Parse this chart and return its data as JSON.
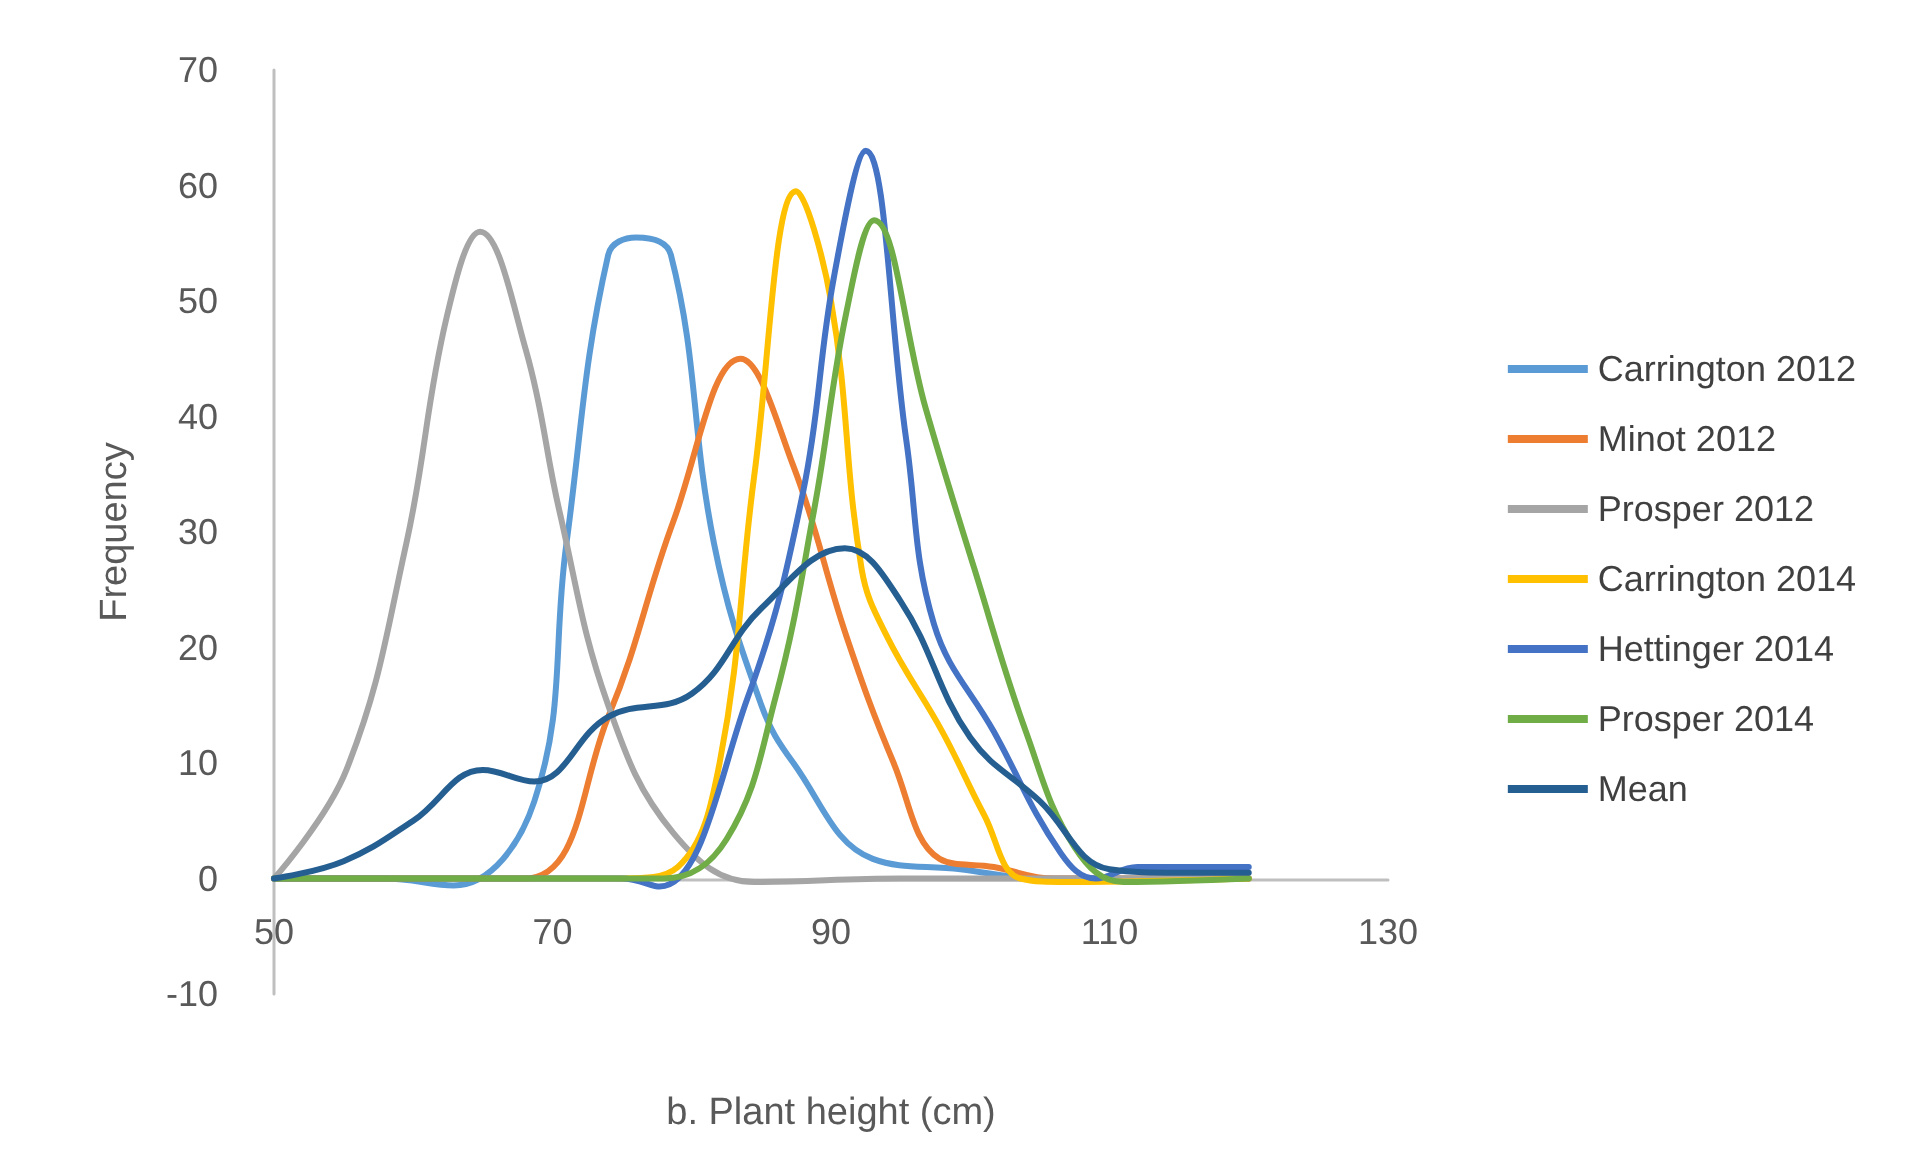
{
  "chart_data": {
    "type": "line",
    "xlabel": "b. Plant height (cm)",
    "ylabel": "Frequency",
    "xlim": [
      50,
      130
    ],
    "xticks": [
      50,
      70,
      90,
      110,
      130
    ],
    "ylim": [
      -10,
      70
    ],
    "yticks": [
      -10,
      0,
      10,
      20,
      30,
      40,
      50,
      60,
      70
    ],
    "grid": false,
    "legend": "right",
    "marker": "none",
    "line_style": "solid",
    "series": [
      {
        "name": "Carrington 2012",
        "color": "#5b9bd5",
        "x": [
          50,
          58,
          62.9,
          68.7,
          71,
          74,
          76,
          78.5,
          81.6,
          85,
          87.3,
          93,
          99.3,
          105,
          120
        ],
        "values": [
          0,
          0,
          -0.6,
          6.7,
          29,
          54,
          55.5,
          54,
          29,
          15,
          10,
          1.7,
          0.8,
          0,
          0
        ]
      },
      {
        "name": "Minot 2012",
        "color": "#ed7d31",
        "x": [
          50,
          68,
          74,
          78.7,
          83.5,
          87.3,
          91.1,
          94.5,
          97.8,
          101.7,
          106,
          120
        ],
        "values": [
          0,
          0,
          14,
          31,
          45,
          35.7,
          21,
          10,
          1.7,
          1,
          0,
          0
        ]
      },
      {
        "name": "Prosper 2012",
        "color": "#a5a5a5",
        "x": [
          50,
          55.2,
          59.5,
          62.4,
          64.8,
          68.1,
          70.5,
          74,
          78.7,
          84.5,
          95,
          120
        ],
        "values": [
          0,
          9.4,
          29,
          48.6,
          56,
          45.7,
          31.8,
          15,
          3.9,
          -0.3,
          0,
          0
        ]
      },
      {
        "name": "Carrington 2014",
        "color": "#ffc000",
        "x": [
          50,
          75,
          79,
          82,
          84.5,
          87.5,
          90,
          92.2,
          94,
          98,
          101,
          103.6,
          107,
          120
        ],
        "values": [
          0,
          0,
          1,
          10,
          35,
          59.5,
          50,
          26.8,
          21,
          12.7,
          5.5,
          0,
          -0.3,
          0
        ]
      },
      {
        "name": "Hettinger 2014",
        "color": "#4472c4",
        "x": [
          50,
          75,
          77.7,
          84,
          88,
          90.2,
          92.5,
          95.4,
          97.4,
          101.7,
          106.5,
          109,
          112,
          120
        ],
        "values": [
          0,
          0,
          -0.7,
          15.6,
          33.5,
          52,
          63,
          38,
          22,
          12.7,
          2.2,
          0,
          1,
          1
        ]
      },
      {
        "name": "Prosper 2014",
        "color": "#70ad47",
        "x": [
          50,
          78,
          82.5,
          86,
          88.8,
          91.1,
          93.1,
          96.8,
          100.3,
          104,
          107.5,
          111,
          120
        ],
        "values": [
          0,
          0,
          3.4,
          15.6,
          32,
          49,
          57,
          40.7,
          26.8,
          12.7,
          2.7,
          -0.3,
          0
        ]
      },
      {
        "name": "Mean",
        "color": "#255e91",
        "x": [
          50,
          55,
          60,
          65,
          68.7,
          74,
          80,
          85,
          91,
          95,
          100,
          105,
          110,
          115,
          120
        ],
        "values": [
          0,
          1.5,
          5,
          9.4,
          8.4,
          14,
          16,
          23.4,
          28.6,
          24,
          12.2,
          6.7,
          0.8,
          0.5,
          0.5
        ]
      }
    ]
  }
}
